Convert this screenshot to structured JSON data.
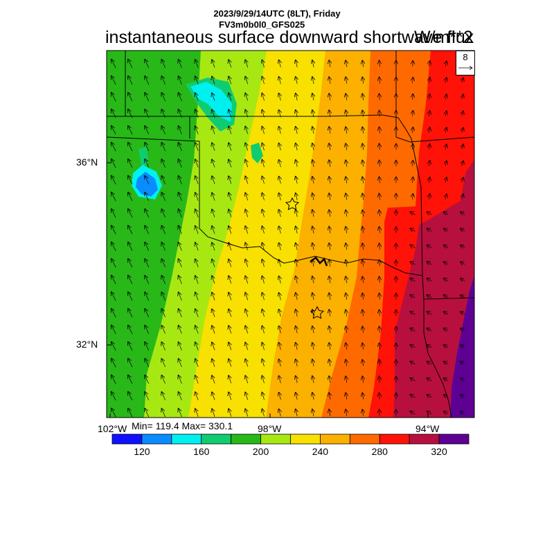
{
  "header": {
    "datetime": "2023/9/29/14UTC (8LT), Friday",
    "model": "FV3m0b0l0_GFS025",
    "title": "instantaneous surface downward shortwave flux",
    "units": "W/m**2"
  },
  "stats": {
    "text": "Min= 119.4 Max= 330.1"
  },
  "reference_vector": {
    "value": "8"
  },
  "axes": {
    "lat_labels": [
      "36°N",
      "32°N"
    ],
    "lon_labels": [
      "102°W",
      "98°W",
      "94°W"
    ]
  },
  "colorbar": {
    "colors": [
      "#1010ff",
      "#0a8cff",
      "#00f0f0",
      "#10cc70",
      "#28b818",
      "#a8e812",
      "#f8e000",
      "#fcb000",
      "#ff6a00",
      "#ff1208",
      "#b8103e",
      "#5e0094"
    ],
    "tick_labels": [
      "120",
      "160",
      "200",
      "240",
      "280",
      "320"
    ]
  },
  "map_features": {
    "stations": 2,
    "shading": "mostly bands increasing west to east, lowest (cyan/blue) in the Texas panhandle area, highest (purple) in the southeast"
  }
}
